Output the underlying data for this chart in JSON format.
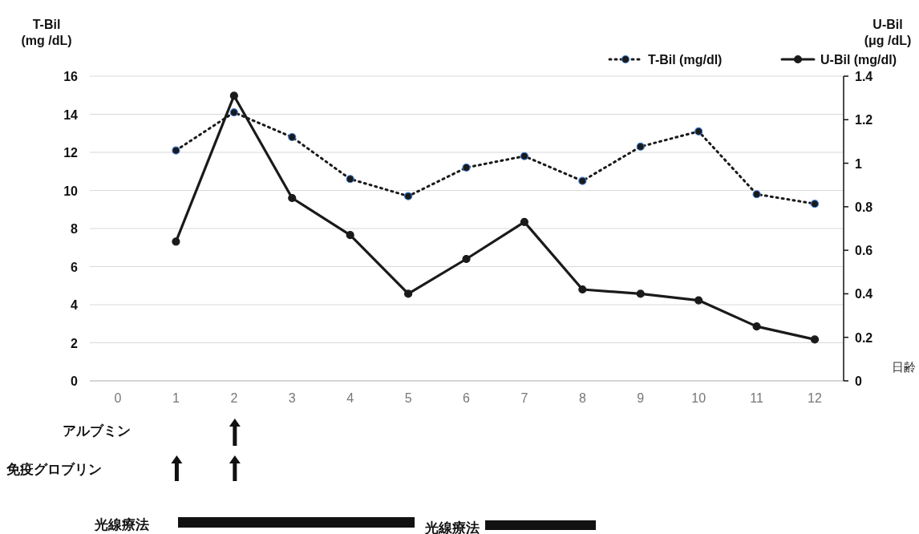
{
  "chart_data": {
    "type": "line",
    "xlabel": "日齢",
    "ylabel": "T-Bil\n(mg /dL)",
    "y2label": "U-Bil\n(μg /dL)",
    "categories": [
      "0",
      "1",
      "2",
      "3",
      "4",
      "5",
      "6",
      "7",
      "8",
      "9",
      "10",
      "11",
      "12"
    ],
    "series": [
      {
        "name": "T-Bil (mg/dl)",
        "color": "#1a1a1a",
        "line_style": "dotted",
        "marker": "circle",
        "values": [
          null,
          12.1,
          14.1,
          12.8,
          10.6,
          9.7,
          11.2,
          11.8,
          10.5,
          12.3,
          13.1,
          9.8,
          9.3
        ]
      },
      {
        "name": "U-Bil (mg/dl)",
        "color": "#1a1a1a",
        "line_style": "solid",
        "marker": "circle",
        "axis": "y2",
        "values": [
          null,
          0.64,
          1.31,
          0.84,
          0.67,
          0.4,
          0.56,
          0.73,
          0.42,
          0.4,
          0.37,
          0.25,
          0.19
        ]
      }
    ],
    "ylim": [
      0,
      16
    ],
    "yticks": [
      0,
      2,
      4,
      6,
      8,
      10,
      12,
      14,
      16
    ],
    "y2lim": [
      0,
      1.4
    ],
    "y2ticks": [
      0,
      0.2,
      0.4,
      0.6,
      0.8,
      1,
      1.2,
      1.4
    ],
    "grid": "y",
    "legend": "top right",
    "annotations": [
      "アルブミン",
      "免疫グロブリン",
      "光線療法",
      "光線療法"
    ]
  }
}
